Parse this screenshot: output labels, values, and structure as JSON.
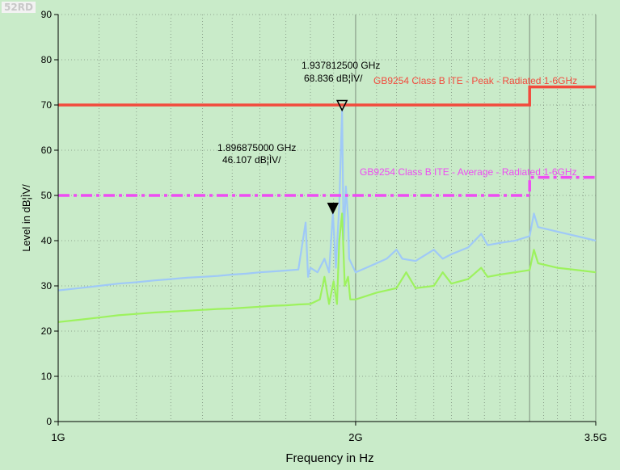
{
  "badge": "52RD",
  "colors": {
    "background": "#c9ebc9",
    "grid": "#7d8f7d",
    "peak_trace": "#9fc9f7",
    "average_trace": "#9df25e",
    "peak_limit": "#f24a3c",
    "average_limit": "#ee4cf2",
    "axis_text": "#000000"
  },
  "chart_data": {
    "type": "line",
    "xlabel": "Frequency in Hz",
    "ylabel": "Level in dB¦ÌV/",
    "x_scale": "log",
    "xlim_hz": [
      1000000000,
      3500000000
    ],
    "ylim": [
      0,
      90
    ],
    "x_tick_labels": [
      {
        "hz": 1000000000,
        "label": "1G"
      },
      {
        "hz": 2000000000,
        "label": "2G"
      },
      {
        "hz": 3500000000,
        "label": "3.5G"
      }
    ],
    "y_ticks": [
      0,
      10,
      20,
      30,
      40,
      50,
      60,
      70,
      80,
      90
    ],
    "grid": true,
    "limit_lines": [
      {
        "name": "GB9254 Class B ITE - Peak - Radiated 1-6GHz",
        "style": "solid",
        "points": [
          [
            1000000000,
            70
          ],
          [
            3000000000,
            70
          ],
          [
            3000000000,
            74
          ],
          [
            3500000000,
            74
          ]
        ]
      },
      {
        "name": "GB9254 Class B ITE - Average - Radiated 1-6GHz",
        "style": "dash-dot",
        "points": [
          [
            1000000000,
            50
          ],
          [
            3000000000,
            50
          ],
          [
            3000000000,
            54
          ],
          [
            3500000000,
            54
          ]
        ]
      }
    ],
    "series": [
      {
        "role": "peak",
        "points": [
          [
            1000000000,
            29
          ],
          [
            1050000000,
            29.5
          ],
          [
            1100000000,
            30
          ],
          [
            1150000000,
            30.5
          ],
          [
            1200000000,
            30.8
          ],
          [
            1250000000,
            31.2
          ],
          [
            1300000000,
            31.5
          ],
          [
            1350000000,
            31.8
          ],
          [
            1400000000,
            32
          ],
          [
            1450000000,
            32.2
          ],
          [
            1500000000,
            32.5
          ],
          [
            1550000000,
            32.7
          ],
          [
            1600000000,
            33
          ],
          [
            1650000000,
            33.2
          ],
          [
            1700000000,
            33.4
          ],
          [
            1750000000,
            33.6
          ],
          [
            1780000000,
            44
          ],
          [
            1790000000,
            32
          ],
          [
            1800000000,
            34
          ],
          [
            1830000000,
            33
          ],
          [
            1860000000,
            36
          ],
          [
            1880000000,
            33
          ],
          [
            1896875000,
            46.107
          ],
          [
            1910000000,
            34
          ],
          [
            1925000000,
            48
          ],
          [
            1937812500,
            68.836
          ],
          [
            1945000000,
            40
          ],
          [
            1955000000,
            52
          ],
          [
            1965000000,
            45
          ],
          [
            1970000000,
            36
          ],
          [
            2000000000,
            33
          ],
          [
            2050000000,
            34
          ],
          [
            2100000000,
            35
          ],
          [
            2150000000,
            36
          ],
          [
            2200000000,
            38
          ],
          [
            2230000000,
            36
          ],
          [
            2300000000,
            35.5
          ],
          [
            2400000000,
            38
          ],
          [
            2450000000,
            36
          ],
          [
            2500000000,
            37
          ],
          [
            2600000000,
            38.5
          ],
          [
            2680000000,
            41.5
          ],
          [
            2720000000,
            39
          ],
          [
            2800000000,
            39.5
          ],
          [
            2900000000,
            40
          ],
          [
            3000000000,
            41
          ],
          [
            3030000000,
            46
          ],
          [
            3060000000,
            43
          ],
          [
            3200000000,
            42
          ],
          [
            3350000000,
            41
          ],
          [
            3500000000,
            40
          ]
        ]
      },
      {
        "role": "average",
        "points": [
          [
            1000000000,
            22
          ],
          [
            1050000000,
            22.5
          ],
          [
            1100000000,
            23
          ],
          [
            1150000000,
            23.5
          ],
          [
            1200000000,
            23.8
          ],
          [
            1250000000,
            24.1
          ],
          [
            1300000000,
            24.3
          ],
          [
            1350000000,
            24.5
          ],
          [
            1400000000,
            24.7
          ],
          [
            1450000000,
            24.9
          ],
          [
            1500000000,
            25
          ],
          [
            1550000000,
            25.2
          ],
          [
            1600000000,
            25.4
          ],
          [
            1650000000,
            25.6
          ],
          [
            1700000000,
            25.7
          ],
          [
            1750000000,
            25.9
          ],
          [
            1800000000,
            26
          ],
          [
            1840000000,
            27
          ],
          [
            1860000000,
            32
          ],
          [
            1880000000,
            26
          ],
          [
            1900000000,
            31
          ],
          [
            1915000000,
            26
          ],
          [
            1925000000,
            40
          ],
          [
            1937812500,
            46
          ],
          [
            1950000000,
            30
          ],
          [
            1965000000,
            32
          ],
          [
            1975000000,
            27
          ],
          [
            2000000000,
            27
          ],
          [
            2100000000,
            28.5
          ],
          [
            2200000000,
            29.5
          ],
          [
            2250000000,
            33
          ],
          [
            2300000000,
            29.5
          ],
          [
            2400000000,
            30
          ],
          [
            2450000000,
            33
          ],
          [
            2500000000,
            30.5
          ],
          [
            2600000000,
            31.5
          ],
          [
            2680000000,
            34
          ],
          [
            2720000000,
            32
          ],
          [
            2800000000,
            32.5
          ],
          [
            2900000000,
            33
          ],
          [
            3000000000,
            33.5
          ],
          [
            3030000000,
            38
          ],
          [
            3060000000,
            35
          ],
          [
            3200000000,
            34
          ],
          [
            3350000000,
            33.5
          ],
          [
            3500000000,
            33
          ]
        ]
      }
    ],
    "markers": [
      {
        "hz": 1937812500,
        "level": 68.836,
        "style": "hollow",
        "freq_label": "1.937812500 GHz",
        "level_label": "68.836 dB¦ÌV/"
      },
      {
        "hz": 1896875000,
        "level": 46.107,
        "style": "filled",
        "freq_label": "1.896875000 GHz",
        "level_label": "46.107 dB¦ÌV/"
      }
    ]
  }
}
